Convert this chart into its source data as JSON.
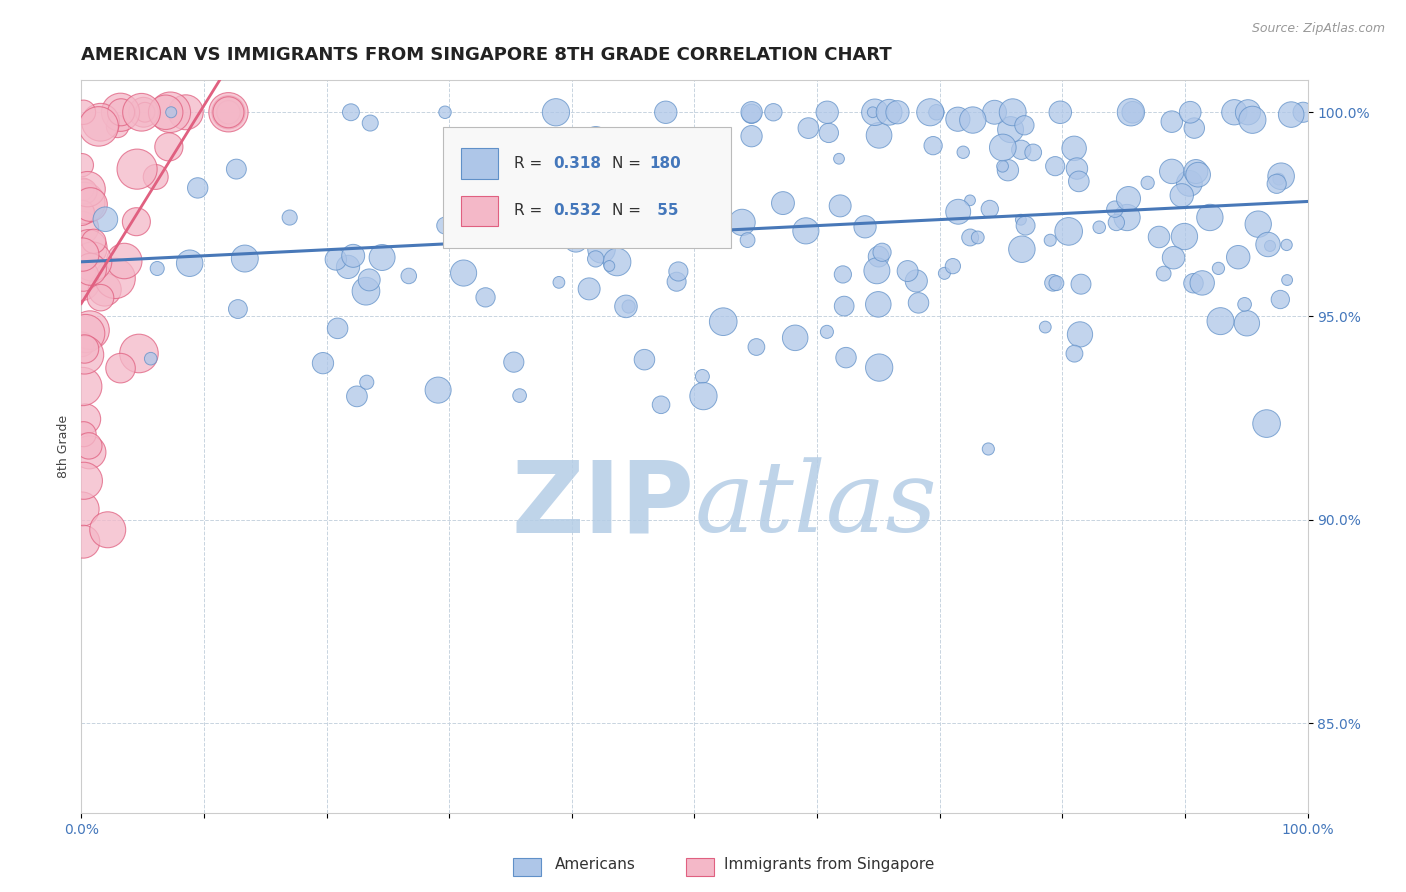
{
  "title": "AMERICAN VS IMMIGRANTS FROM SINGAPORE 8TH GRADE CORRELATION CHART",
  "source_text": "Source: ZipAtlas.com",
  "ylabel": "8th Grade",
  "xlim": [
    0.0,
    1.0
  ],
  "ylim": [
    0.828,
    1.008
  ],
  "yticks": [
    0.85,
    0.9,
    0.95,
    1.0
  ],
  "ytick_labels": [
    "85.0%",
    "90.0%",
    "95.0%",
    "100.0%"
  ],
  "blue_color": "#aec6e8",
  "pink_color": "#f4b8c8",
  "blue_edge": "#6090c8",
  "pink_edge": "#e06080",
  "trendline_color": "#4878b8",
  "pink_trendline_color": "#e06080",
  "watermark": "ZIPatlas",
  "watermark_color_r": 180,
  "watermark_color_g": 205,
  "watermark_color_b": 230,
  "title_fontsize": 13,
  "axis_label_fontsize": 9,
  "tick_fontsize": 10,
  "legend_fontsize": 11,
  "legend_label_blue": "Americans",
  "legend_label_pink": "Immigrants from Singapore",
  "background_color": "#ffffff",
  "grid_color": "#c8d4e0",
  "seed": 42
}
